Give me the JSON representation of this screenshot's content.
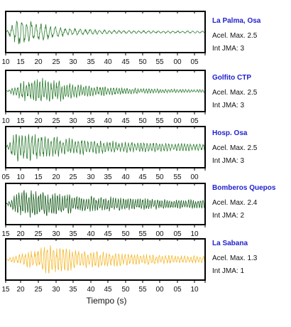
{
  "chart_data": [
    {
      "type": "line",
      "station": "La Palma, Osa",
      "accel_label": "Acel. Max. 2.5",
      "jma_label": "Int JMA: 3",
      "tick_labels": [
        "10",
        "15",
        "20",
        "25",
        "30",
        "35",
        "40",
        "45",
        "50",
        "55",
        "00",
        "05"
      ],
      "color": "#2e7d32",
      "peak_time": 3,
      "amplitude": 0.95,
      "decay": 0.11,
      "noise_floor": 0.06,
      "period": 1.4
    },
    {
      "type": "line",
      "station": "Golfito CTP",
      "accel_label": "Acel. Max. 2.5",
      "jma_label": "Int JMA: 3",
      "tick_labels": [
        "10",
        "15",
        "20",
        "25",
        "30",
        "35",
        "40",
        "45",
        "50",
        "55",
        "00",
        "05"
      ],
      "color": "#2e7d32",
      "peak_time": 8,
      "amplitude": 0.9,
      "decay": 0.07,
      "noise_floor": 0.05,
      "period": 0.8
    },
    {
      "type": "line",
      "station": "Hosp. Osa",
      "accel_label": "Acel. Max. 2.5",
      "jma_label": "Int JMA: 3",
      "tick_labels": [
        "05",
        "10",
        "15",
        "20",
        "25",
        "30",
        "35",
        "40",
        "45",
        "50",
        "55",
        "00"
      ],
      "color": "#2e7d32",
      "peak_time": 2,
      "amplitude": 0.9,
      "decay": 0.045,
      "noise_floor": 0.12,
      "period": 0.9
    },
    {
      "type": "line",
      "station": "Bomberos Quepos",
      "accel_label": "Acel. Max. 2.4",
      "jma_label": "Int JMA: 2",
      "tick_labels": [
        "15",
        "20",
        "25",
        "30",
        "35",
        "40",
        "45",
        "50",
        "55",
        "00",
        "05",
        "10"
      ],
      "color": "#1b5e20",
      "peak_time": 4,
      "amplitude": 0.85,
      "decay": 0.04,
      "noise_floor": 0.14,
      "period": 0.7
    },
    {
      "type": "line",
      "station": "La Sabana",
      "accel_label": "Acel. Max. 1.3",
      "jma_label": "Int JMA: 1",
      "tick_labels": [
        "15",
        "20",
        "25",
        "30",
        "35",
        "40",
        "45",
        "50",
        "55",
        "00",
        "05",
        "10"
      ],
      "color": "#f5b82e",
      "peak_time": 10,
      "amplitude": 0.85,
      "decay": 0.05,
      "noise_floor": 0.12,
      "period": 0.9
    }
  ],
  "xlabel": "Tiempo (s)"
}
